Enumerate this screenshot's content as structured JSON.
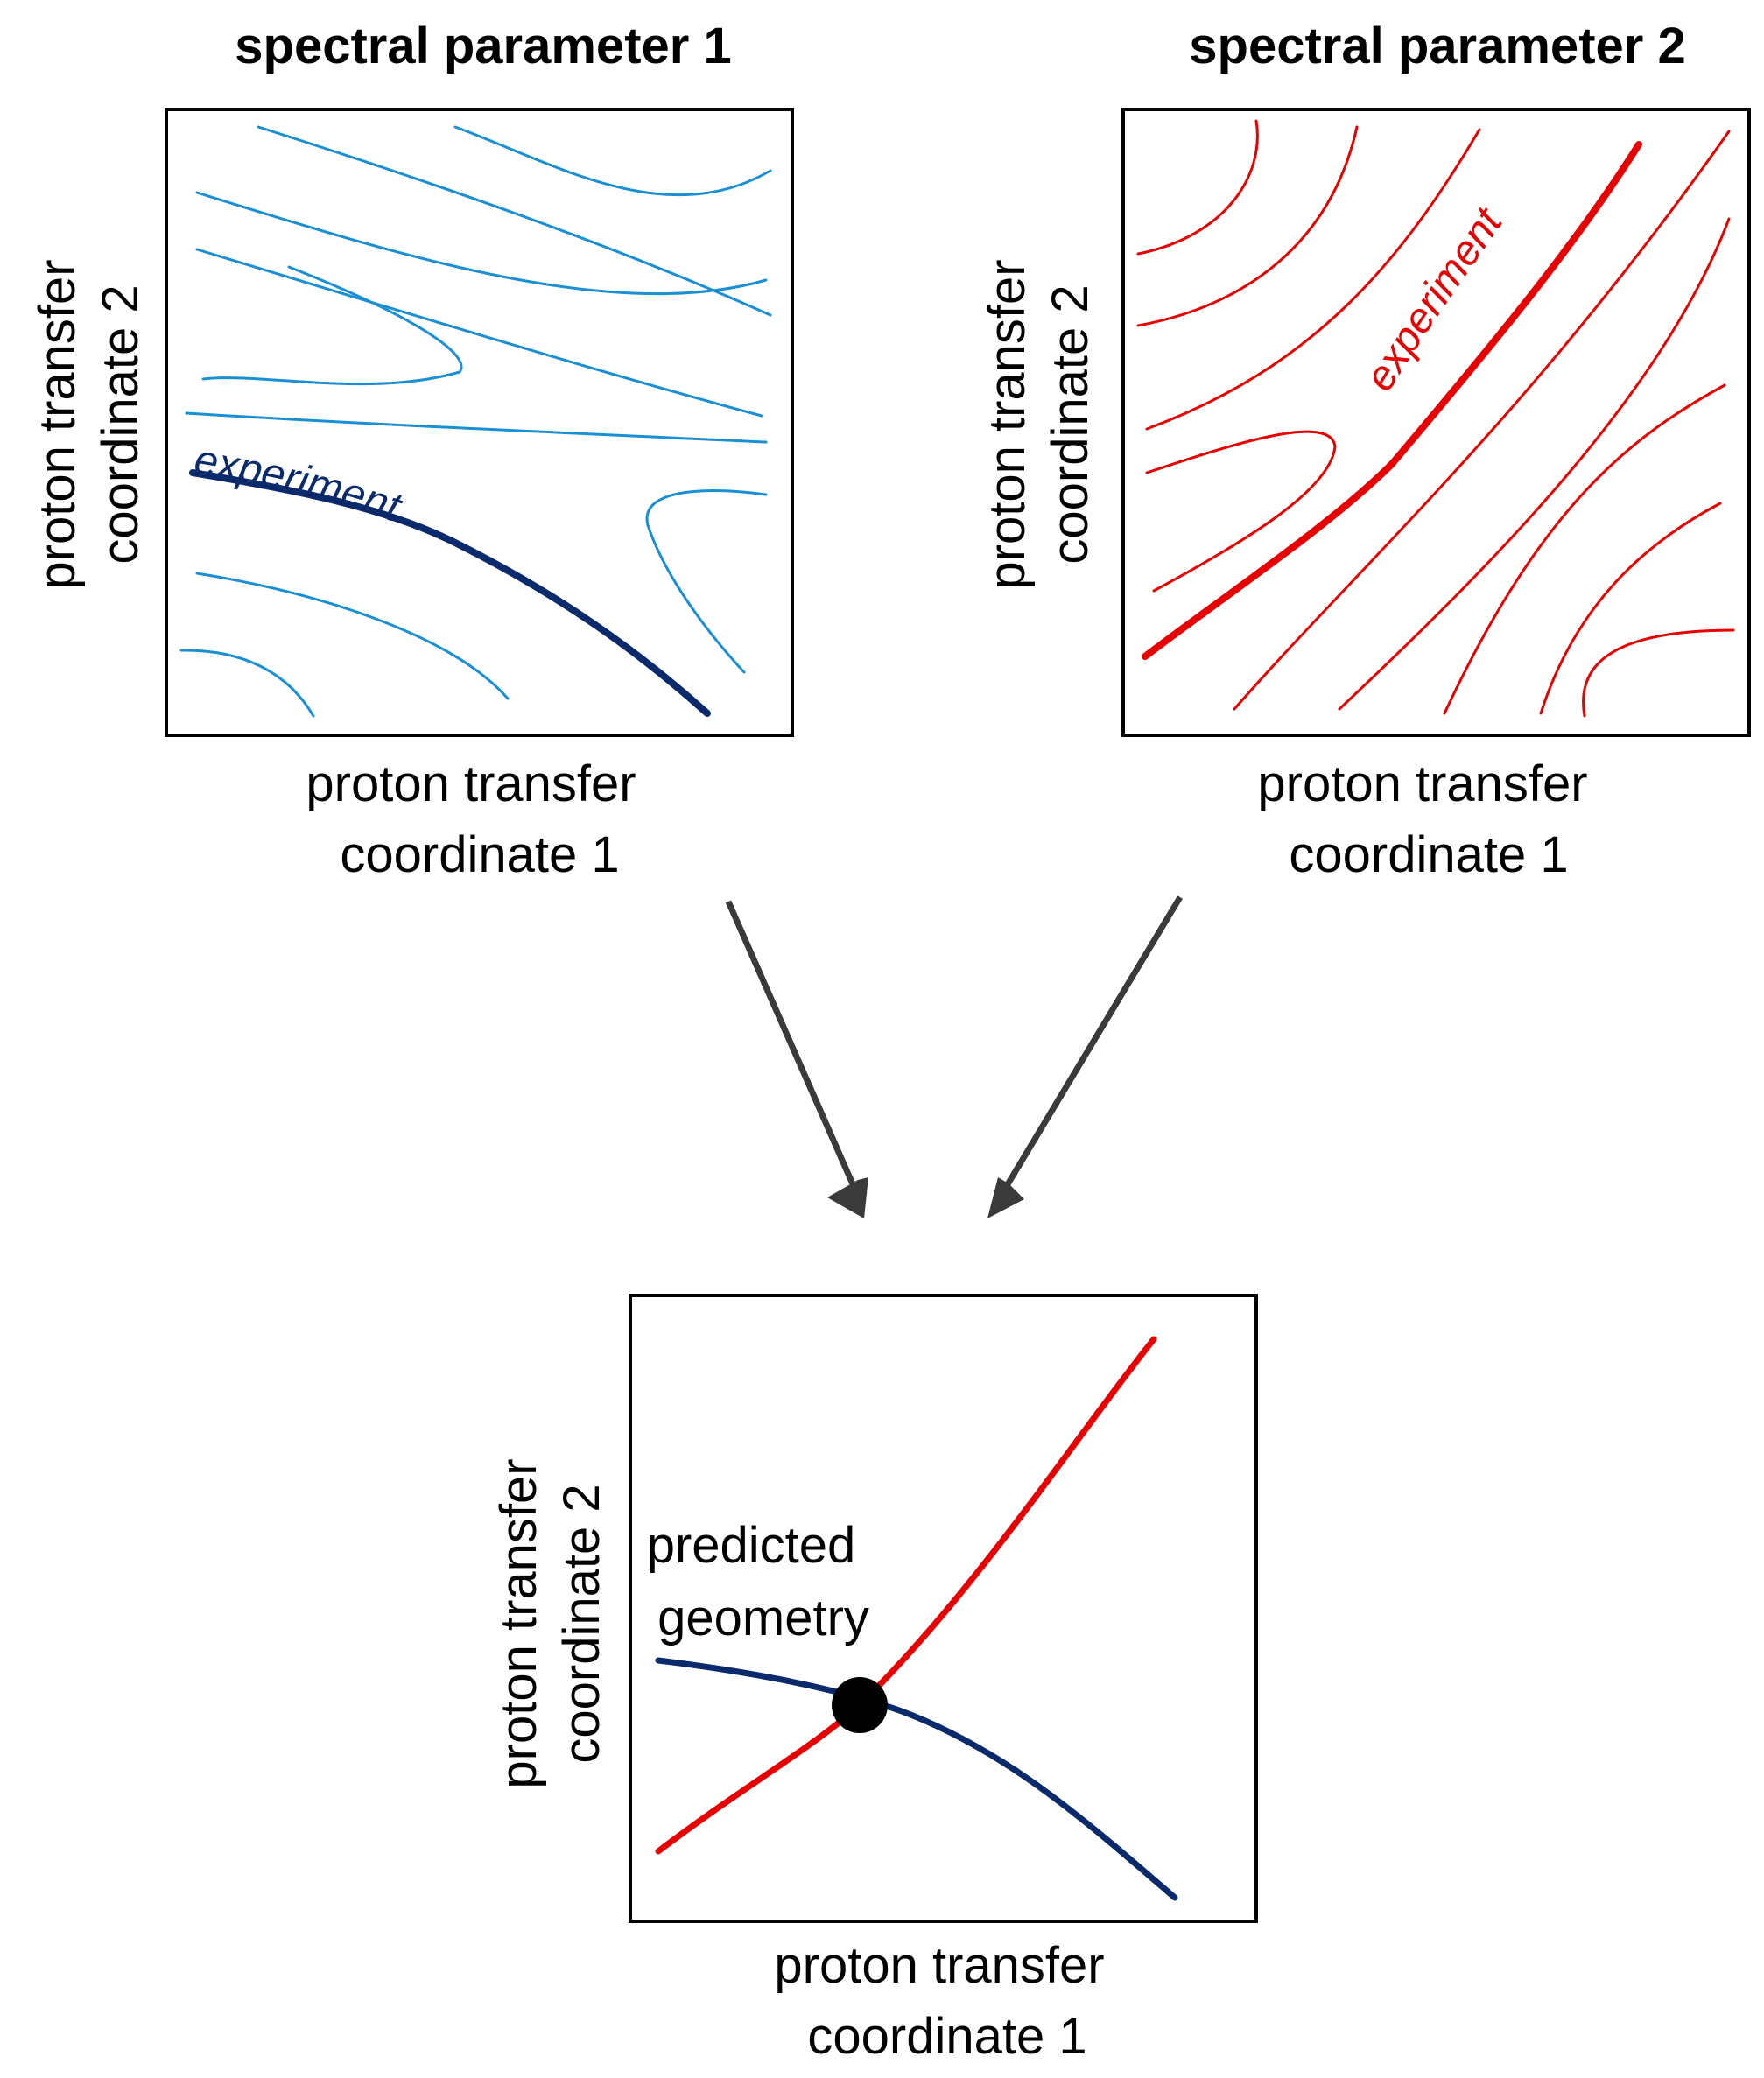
{
  "panels": {
    "top_left": {
      "title": "spectral parameter 1",
      "xlabel_line1": "proton transfer",
      "xlabel_line2": "coordinate 1",
      "ylabel_line1": "proton transfer",
      "ylabel_line2": "coordinate 2",
      "curve_label": "experiment",
      "contour_color": "#1a8fd4",
      "experiment_color": "#0b2a6b"
    },
    "top_right": {
      "title": "spectral parameter 2",
      "xlabel_line1": "proton transfer",
      "xlabel_line2": "coordinate 1",
      "ylabel_line1": "proton transfer",
      "ylabel_line2": "coordinate 2",
      "curve_label": "experiment",
      "contour_color": "#e60000",
      "experiment_color": "#e60000"
    },
    "bottom": {
      "xlabel_line1": "proton transfer",
      "xlabel_line2": "coordinate 1",
      "ylabel_line1": "proton transfer",
      "ylabel_line2": "coordinate 2",
      "point_label_line1": "predicted",
      "point_label_line2": "geometry",
      "point_color": "#000000"
    }
  },
  "arrow_color": "#3a3a3a"
}
